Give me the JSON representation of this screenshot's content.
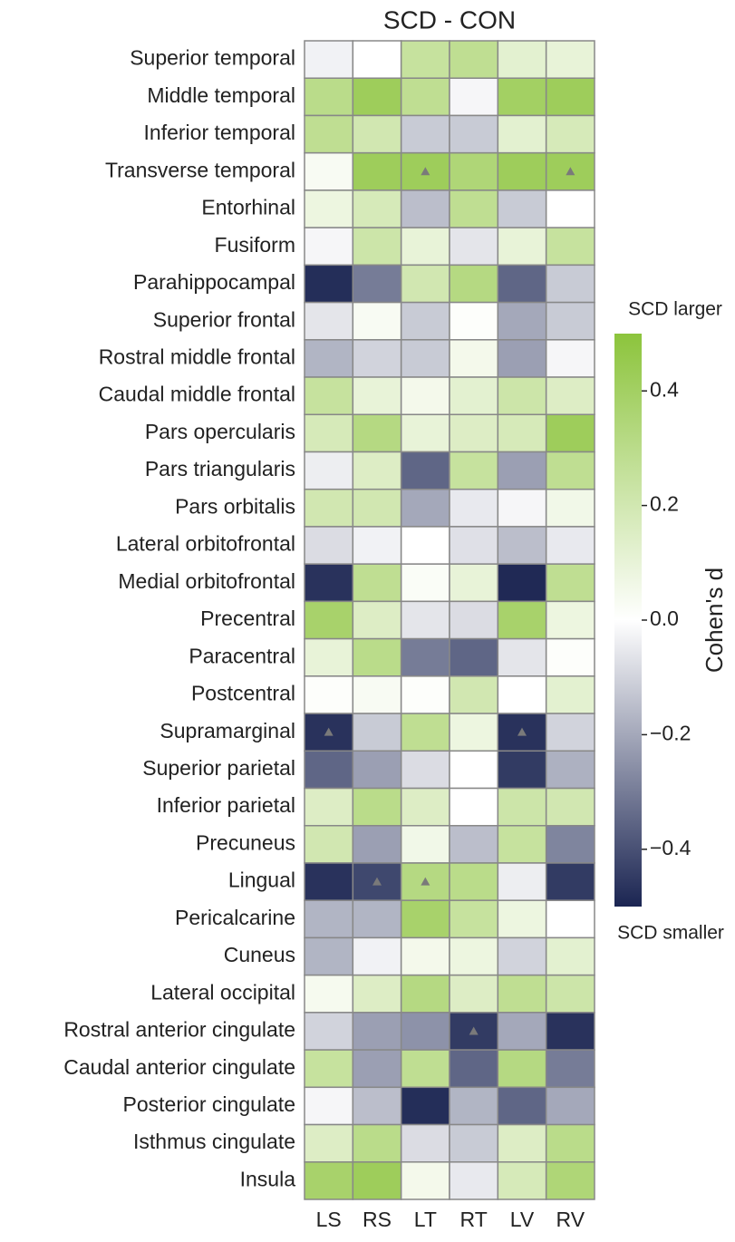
{
  "chart_data": {
    "type": "heatmap",
    "title": "SCD - CON",
    "columns": [
      "LS",
      "RS",
      "LT",
      "RT",
      "LV",
      "RV"
    ],
    "rows": [
      "Superior temporal",
      "Middle temporal",
      "Inferior temporal",
      "Transverse temporal",
      "Entorhinal",
      "Fusiform",
      "Parahippocampal",
      "Superior frontal",
      "Rostral middle frontal",
      "Caudal middle frontal",
      "Pars opercularis",
      "Pars triangularis",
      "Pars orbitalis",
      "Lateral orbitofrontal",
      "Medial orbitofrontal",
      "Precentral",
      "Paracentral",
      "Postcentral",
      "Supramarginal",
      "Superior parietal",
      "Inferior parietal",
      "Precuneus",
      "Lingual",
      "Pericalcarine",
      "Cuneus",
      "Lateral occipital",
      "Rostral anterior cingulate",
      "Caudal anterior cingulate",
      "Posterior cingulate",
      "Isthmus cingulate",
      "Insula"
    ],
    "values": [
      [
        -0.03,
        0.0,
        0.25,
        0.28,
        0.12,
        0.1
      ],
      [
        0.3,
        0.42,
        0.28,
        -0.02,
        0.4,
        0.42
      ],
      [
        0.28,
        0.2,
        -0.12,
        -0.12,
        0.12,
        0.18
      ],
      [
        0.03,
        0.42,
        0.42,
        0.35,
        0.42,
        0.42
      ],
      [
        0.08,
        0.18,
        -0.15,
        0.28,
        -0.12,
        0.0
      ],
      [
        -0.02,
        0.22,
        0.1,
        -0.06,
        0.1,
        0.25
      ],
      [
        -0.48,
        -0.3,
        0.2,
        0.32,
        -0.35,
        -0.12
      ],
      [
        -0.06,
        0.03,
        -0.12,
        0.01,
        -0.2,
        -0.12
      ],
      [
        -0.17,
        -0.1,
        -0.12,
        0.05,
        -0.22,
        -0.02
      ],
      [
        0.25,
        0.1,
        0.05,
        0.12,
        0.22,
        0.15
      ],
      [
        0.18,
        0.32,
        0.1,
        0.15,
        0.18,
        0.42
      ],
      [
        -0.04,
        0.15,
        -0.35,
        0.25,
        -0.22,
        0.28
      ],
      [
        0.2,
        0.2,
        -0.2,
        -0.05,
        -0.02,
        0.06
      ],
      [
        -0.08,
        -0.03,
        0.0,
        -0.07,
        -0.15,
        -0.05
      ],
      [
        -0.47,
        0.28,
        0.02,
        0.1,
        -0.49,
        0.28
      ],
      [
        0.38,
        0.15,
        -0.06,
        -0.08,
        0.38,
        0.08
      ],
      [
        0.1,
        0.3,
        -0.3,
        -0.35,
        -0.06,
        0.01
      ],
      [
        0.01,
        0.03,
        0.01,
        0.2,
        0.0,
        0.12
      ],
      [
        -0.47,
        -0.12,
        0.28,
        0.08,
        -0.47,
        -0.1
      ],
      [
        -0.35,
        -0.22,
        -0.08,
        0.0,
        -0.45,
        -0.18
      ],
      [
        0.15,
        0.3,
        0.15,
        0.0,
        0.22,
        0.2
      ],
      [
        0.2,
        -0.22,
        0.06,
        -0.15,
        0.25,
        -0.28
      ],
      [
        -0.47,
        -0.42,
        0.32,
        0.3,
        -0.04,
        -0.45
      ],
      [
        -0.17,
        -0.17,
        0.38,
        0.25,
        0.08,
        0.0
      ],
      [
        -0.17,
        -0.03,
        0.05,
        0.08,
        -0.1,
        0.12
      ],
      [
        0.04,
        0.15,
        0.32,
        0.15,
        0.28,
        0.22
      ],
      [
        -0.1,
        -0.22,
        -0.25,
        -0.45,
        -0.2,
        -0.47
      ],
      [
        0.25,
        -0.22,
        0.28,
        -0.35,
        0.32,
        -0.3
      ],
      [
        -0.02,
        -0.15,
        -0.48,
        -0.17,
        -0.35,
        -0.2
      ],
      [
        0.15,
        0.3,
        -0.08,
        -0.12,
        0.15,
        0.3
      ],
      [
        0.38,
        0.42,
        0.05,
        -0.05,
        0.18,
        0.35
      ]
    ],
    "markers": [
      [
        3,
        2
      ],
      [
        3,
        5
      ],
      [
        18,
        0
      ],
      [
        18,
        4
      ],
      [
        22,
        1
      ],
      [
        22,
        2
      ],
      [
        26,
        3
      ]
    ],
    "clim": [
      -0.5,
      0.5
    ],
    "colormap": [
      "#1b2552",
      "#ffffff",
      "#8cc43c"
    ],
    "cticks": [
      {
        "value": -0.4,
        "label": "−0.4"
      },
      {
        "value": -0.2,
        "label": "−0.2"
      },
      {
        "value": 0,
        "label": "0.0"
      },
      0.2,
      0.4
    ],
    "colorbar_label": "Cohen's d",
    "colorbar_top_label": "SCD larger",
    "colorbar_bottom_label": "SCD smaller"
  }
}
